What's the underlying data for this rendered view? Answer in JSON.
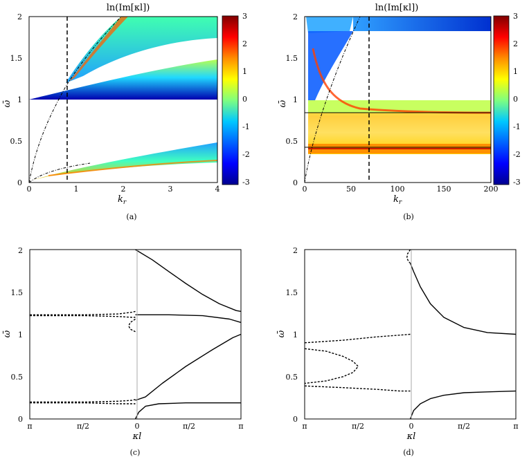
{
  "figure": {
    "panels": {
      "a": {
        "title": "ln(Im[κl])",
        "xlabel": "k",
        "xlabel_sub": "r",
        "ylabel": "ω̄",
        "caption": "(a)",
        "xticks": [
          "0",
          "1",
          "2",
          "3",
          "4"
        ],
        "yticks": [
          "0",
          "0.5",
          "1",
          "1.5",
          "2"
        ],
        "colorbar_ticks": [
          "3",
          "2",
          "1",
          "0",
          "-1",
          "-2",
          "-3"
        ]
      },
      "b": {
        "title": "ln(Im[κl])",
        "xlabel": "k",
        "xlabel_sub": "r",
        "ylabel": "ω̄",
        "caption": "(b)",
        "xticks": [
          "0",
          "50",
          "100",
          "150",
          "200"
        ],
        "yticks": [
          "0",
          "0.5",
          "1",
          "1.5",
          "2"
        ],
        "colorbar_ticks": [
          "3",
          "2",
          "1",
          "0",
          "-1",
          "-2",
          "-3"
        ]
      },
      "c": {
        "xlabel": "κl",
        "ylabel": "ω̄",
        "caption": "(c)",
        "xticks": [
          "π",
          "π/2",
          "0",
          "π/2",
          "π"
        ],
        "yticks": [
          "0",
          "0.5",
          "1",
          "1.5",
          "2"
        ]
      },
      "d": {
        "xlabel": "κl",
        "ylabel": "ω̄",
        "caption": "(d)",
        "xticks": [
          "π",
          "π/2",
          "0",
          "π/2",
          "π"
        ],
        "yticks": [
          "0",
          "0.5",
          "1",
          "1.5",
          "2"
        ]
      }
    },
    "colors": {
      "low": "#00008f",
      "mid": "#00c8ff",
      "zero": "#7fff7f",
      "high": "#ffd200",
      "max": "#7f0000"
    }
  },
  "chart_data": [
    {
      "type": "heatmap",
      "panel": "a",
      "title": "ln(Im[κl])",
      "xlabel": "k_r",
      "ylabel": "ω̄",
      "xlim": [
        0,
        4
      ],
      "ylim": [
        0,
        2
      ],
      "colorbar_range": [
        -3,
        3
      ],
      "dashed_vertical_x": 0.8
    },
    {
      "type": "heatmap",
      "panel": "b",
      "title": "ln(Im[κl])",
      "xlabel": "k_r",
      "ylabel": "ω̄",
      "xlim": [
        0,
        200
      ],
      "ylim": [
        0,
        2
      ],
      "colorbar_range": [
        -3,
        3
      ],
      "dashed_vertical_x": 70,
      "horizontal_lines_y": [
        0.83,
        0.42
      ]
    },
    {
      "type": "line",
      "panel": "c",
      "xlabel": "κl",
      "ylabel": "ω̄",
      "xlim": [
        -3.1416,
        3.1416
      ],
      "ylim": [
        0,
        2
      ],
      "series": [
        {
          "style": "solid",
          "x": [
            0,
            0.5,
            1.0,
            1.5,
            2.0,
            2.5,
            3.0,
            3.1416
          ],
          "y": [
            2.0,
            1.88,
            1.74,
            1.6,
            1.47,
            1.36,
            1.28,
            1.27
          ]
        },
        {
          "style": "solid",
          "x": [
            0,
            1.0,
            2.0,
            2.8,
            3.1416
          ],
          "y": [
            1.23,
            1.23,
            1.22,
            1.18,
            1.14
          ]
        },
        {
          "style": "solid",
          "x": [
            0,
            0.3,
            0.8,
            1.5,
            2.3,
            2.9,
            3.1416
          ],
          "y": [
            0.22,
            0.26,
            0.42,
            0.62,
            0.82,
            0.96,
            1.0
          ]
        },
        {
          "style": "solid",
          "x": [
            0,
            0.1,
            0.3,
            0.7,
            1.5,
            3.1416
          ],
          "y": [
            0.0,
            0.08,
            0.15,
            0.18,
            0.19,
            0.19
          ]
        },
        {
          "style": "dashed",
          "x": [
            -3.1416,
            -1.5,
            -0.5,
            -0.1,
            0
          ],
          "y": [
            1.23,
            1.23,
            1.24,
            1.26,
            1.27
          ]
        },
        {
          "style": "dashed",
          "x": [
            -3.1416,
            -1.5,
            -0.5,
            -0.1,
            0
          ],
          "y": [
            1.22,
            1.22,
            1.21,
            1.2,
            1.2
          ]
        },
        {
          "style": "dashed",
          "x": [
            0,
            -0.15,
            -0.2,
            -0.15,
            0
          ],
          "y": [
            1.18,
            1.14,
            1.1,
            1.06,
            1.03
          ]
        },
        {
          "style": "dashed",
          "x": [
            -3.1416,
            -1.5,
            -0.5,
            -0.1,
            0
          ],
          "y": [
            0.2,
            0.2,
            0.21,
            0.22,
            0.23
          ]
        },
        {
          "style": "dashed",
          "x": [
            -3.1416,
            -1.5,
            -0.5,
            -0.1,
            0
          ],
          "y": [
            0.19,
            0.19,
            0.18,
            0.18,
            0.18
          ]
        }
      ]
    },
    {
      "type": "line",
      "panel": "d",
      "xlabel": "κl",
      "ylabel": "ω̄",
      "xlim": [
        -3.1416,
        3.1416
      ],
      "ylim": [
        0,
        2
      ],
      "series": [
        {
          "style": "solid",
          "x": [
            0,
            0.1,
            0.3,
            0.6,
            1.0,
            1.6,
            2.3,
            3.1416
          ],
          "y": [
            1.84,
            1.74,
            1.56,
            1.36,
            1.2,
            1.08,
            1.02,
            1.0
          ]
        },
        {
          "style": "solid",
          "x": [
            0,
            0.1,
            0.3,
            0.6,
            1.0,
            1.6,
            2.3,
            3.1416
          ],
          "y": [
            0.0,
            0.1,
            0.18,
            0.24,
            0.28,
            0.31,
            0.32,
            0.33
          ]
        },
        {
          "style": "dashed",
          "x": [
            -3.1416,
            -2.0,
            -1.0,
            -0.3,
            0
          ],
          "y": [
            0.9,
            0.93,
            0.97,
            0.99,
            1.0
          ]
        },
        {
          "style": "dashed",
          "x": [
            -3.1416,
            -2.5,
            -2.0,
            -1.7,
            -1.55,
            -1.7,
            -2.0,
            -2.5,
            -3.1416
          ],
          "y": [
            0.83,
            0.8,
            0.74,
            0.68,
            0.62,
            0.55,
            0.5,
            0.45,
            0.42
          ]
        },
        {
          "style": "dashed",
          "x": [
            -3.1416,
            -2.0,
            -1.0,
            -0.3,
            0
          ],
          "y": [
            0.39,
            0.37,
            0.35,
            0.33,
            0.33
          ]
        },
        {
          "style": "dashed",
          "x": [
            0,
            -0.08,
            -0.1,
            -0.05,
            0
          ],
          "y": [
            2.0,
            1.95,
            1.9,
            1.86,
            1.84
          ]
        }
      ]
    }
  ]
}
